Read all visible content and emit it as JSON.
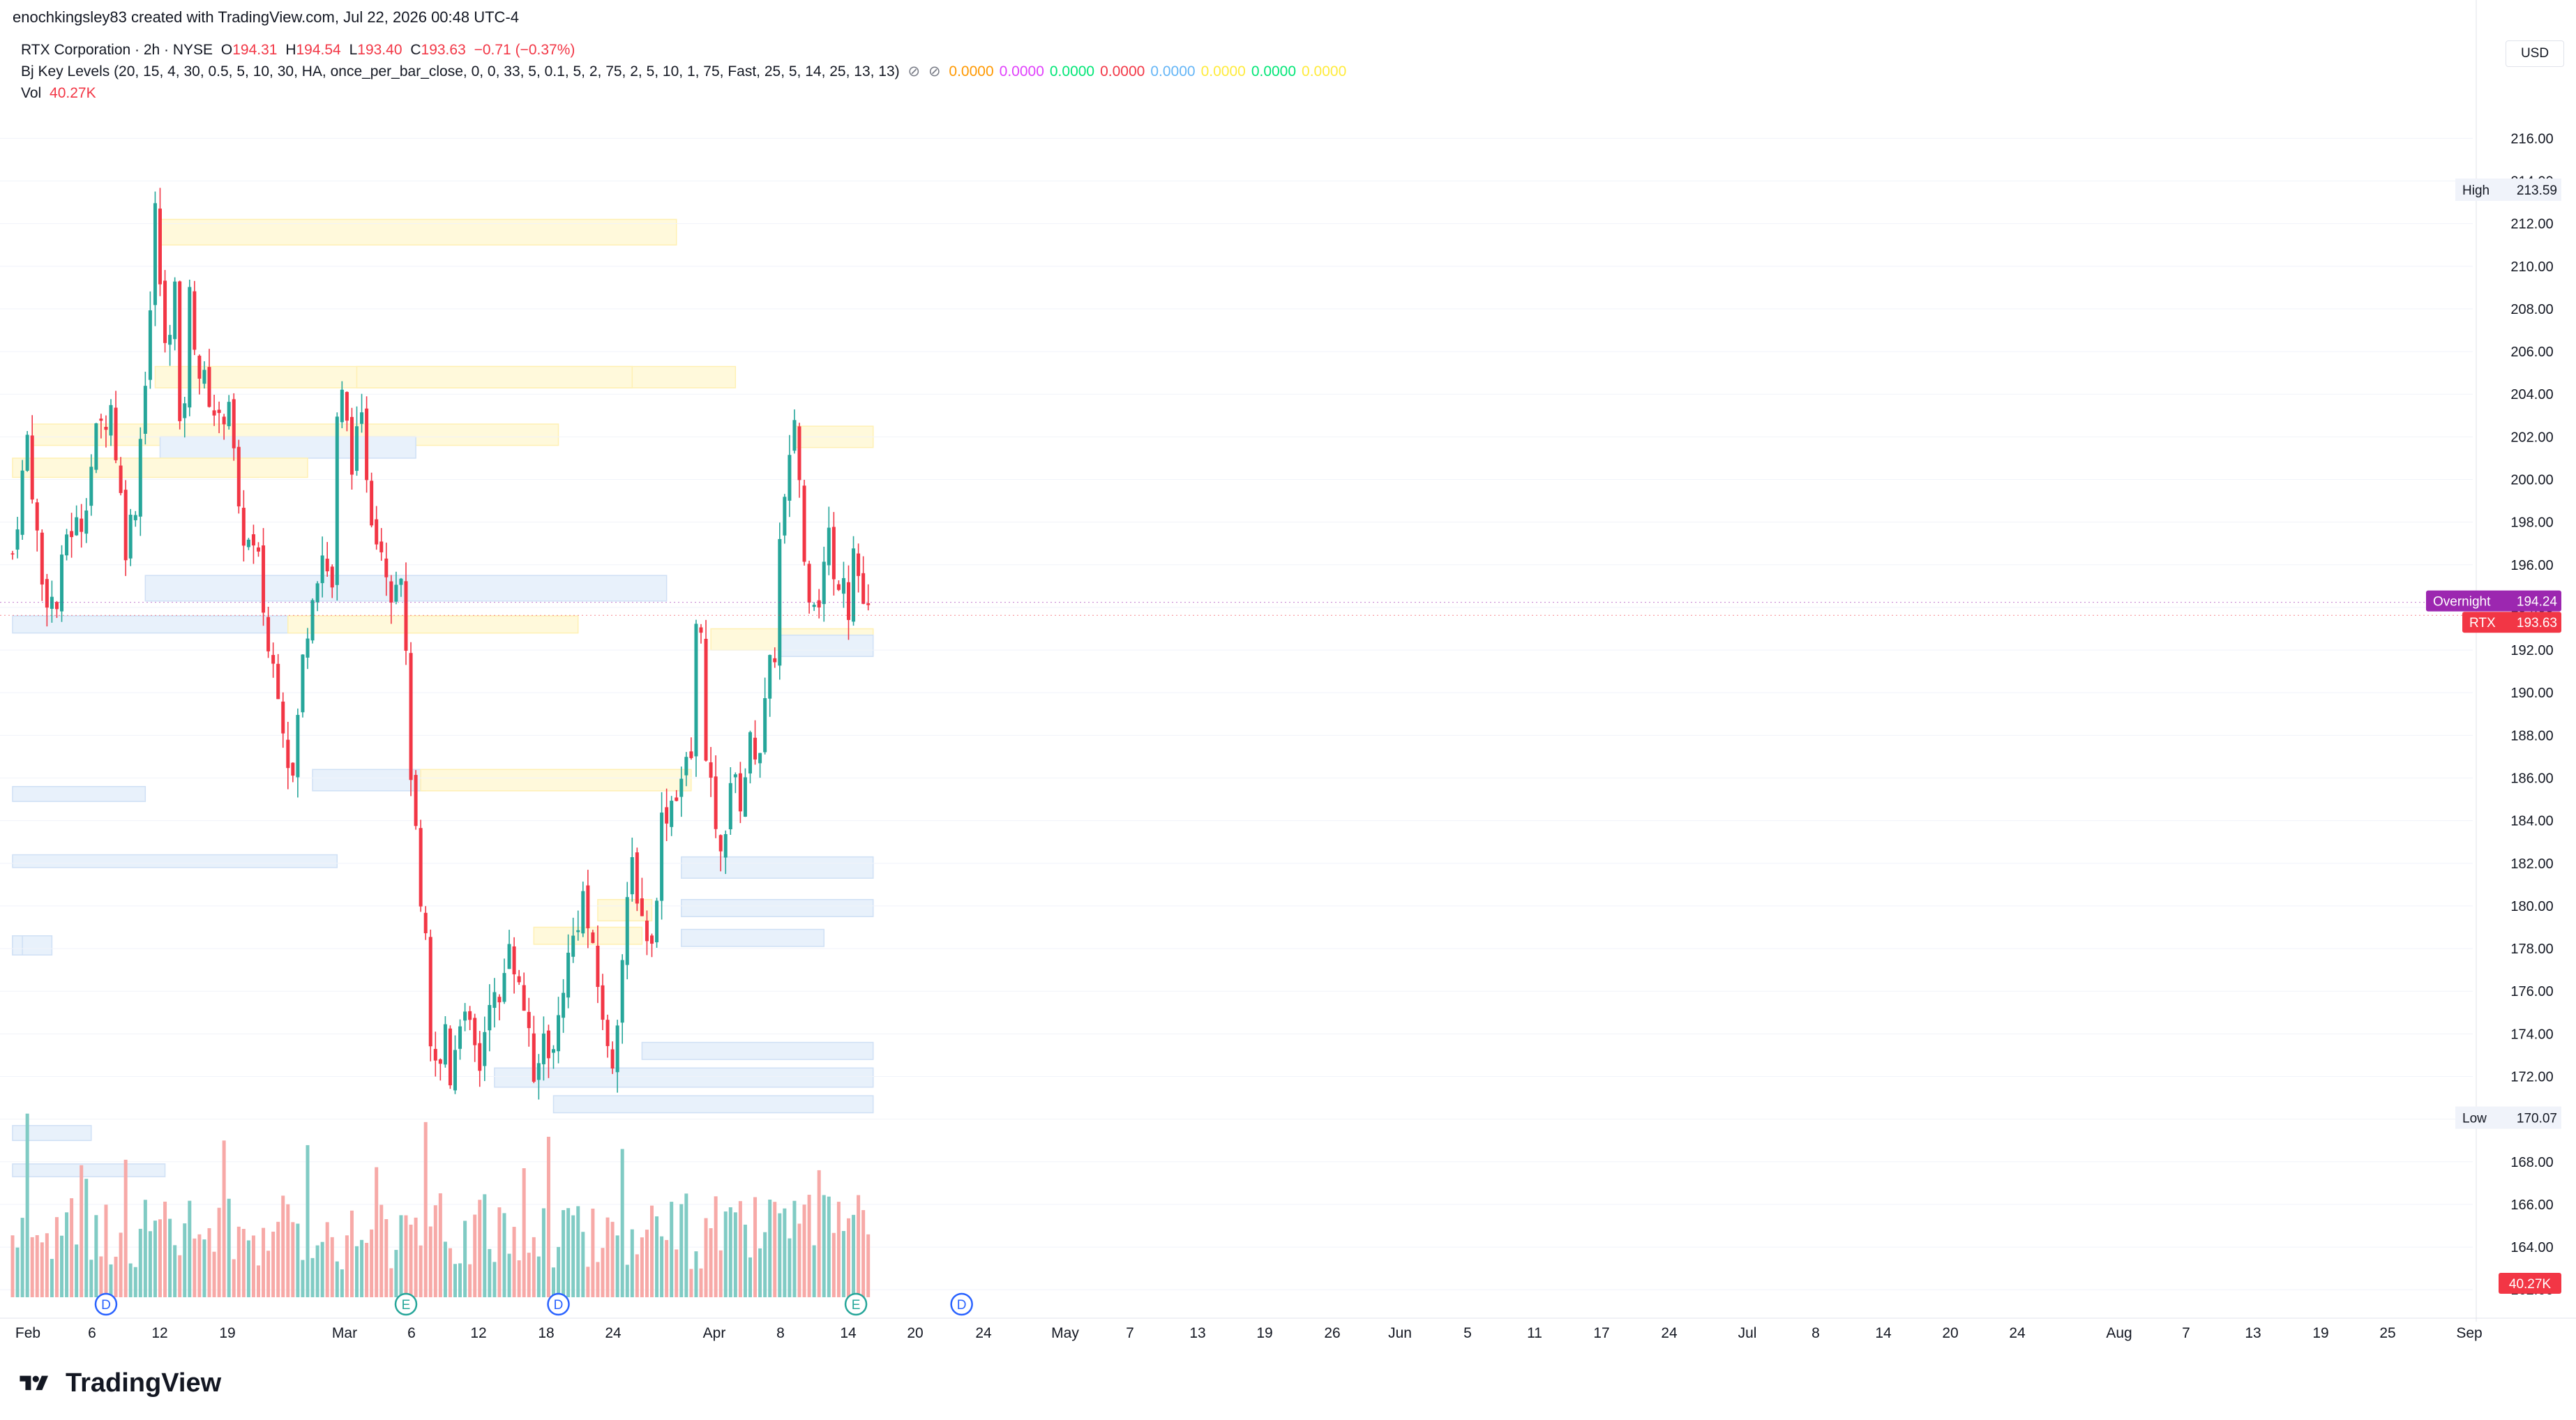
{
  "header": {
    "author_line": "enochkingsley83 created with TradingView.com, Jul 22, 2026 00:48 UTC-4"
  },
  "legend": {
    "symbol": "RTX Corporation · 2h · NYSE",
    "open_label": "O",
    "open": "194.31",
    "high_label": "H",
    "high": "194.54",
    "low_label": "L",
    "low": "193.40",
    "close_label": "C",
    "close": "193.63",
    "change": "−0.71 (−0.37%)",
    "indicator": "Bj Key Levels (20, 15, 4, 30, 0.5, 5, 10, 30, HA, once_per_bar_close, 0, 0, 33, 5, 0.1, 5, 2, 75, 2, 5, 10, 1, 75, Fast, 25, 5, 14, 25, 13, 13)",
    "indicator_values": [
      {
        "text": "0.0000",
        "color": "#ff9800"
      },
      {
        "text": "0.0000",
        "color": "#e040fb"
      },
      {
        "text": "0.0000",
        "color": "#00e676"
      },
      {
        "text": "0.0000",
        "color": "#f23645"
      },
      {
        "text": "0.0000",
        "color": "#64b5f6"
      },
      {
        "text": "0.0000",
        "color": "#ffeb3b"
      },
      {
        "text": "0.0000",
        "color": "#00e676"
      },
      {
        "text": "0.0000",
        "color": "#ffeb3b"
      }
    ],
    "vol_label": "Vol",
    "vol_value": "40.27K"
  },
  "currency_button": "USD",
  "branding": "TradingView",
  "colors": {
    "up": "#26a69a",
    "down": "#f23645",
    "vol_up": "#80cbc4",
    "vol_down": "#f7a9a7",
    "overnight": "#9c27b0",
    "price_tag": "#f23645",
    "resistance_zone": "#fff9db",
    "support_zone": "#e8f1fb"
  },
  "chart_data": {
    "type": "candlestick",
    "symbol": "RTX",
    "interval": "2h",
    "y_ticks": [
      "216.00",
      "214.00",
      "212.00",
      "210.00",
      "208.00",
      "206.00",
      "204.00",
      "202.00",
      "200.00",
      "198.00",
      "196.00",
      "194.00",
      "192.00",
      "190.00",
      "188.00",
      "186.00",
      "184.00",
      "182.00",
      "180.00",
      "178.00",
      "176.00",
      "174.00",
      "172.00",
      "170.00",
      "168.00",
      "166.00",
      "164.00",
      "162.00"
    ],
    "ylim": [
      161.5,
      217.5
    ],
    "x_ticks": [
      "Feb",
      "6",
      "12",
      "19",
      "Mar",
      "6",
      "12",
      "18",
      "24",
      "Apr",
      "8",
      "14",
      "20",
      "24",
      "May",
      "7",
      "13",
      "19",
      "26",
      "Jun",
      "5",
      "11",
      "17",
      "24",
      "Jul",
      "8",
      "14",
      "20",
      "24",
      "Aug",
      "7",
      "13",
      "19",
      "25",
      "Sep"
    ],
    "tags": {
      "high": {
        "label": "High",
        "value": "213.59"
      },
      "low": {
        "label": "Low",
        "value": "170.07"
      },
      "overnight": {
        "label": "Overnight",
        "value": "194.24"
      },
      "last": {
        "label": "RTX",
        "value": "193.63"
      },
      "volume": {
        "value": "40.27K"
      }
    },
    "events": [
      {
        "label": "D",
        "x_day": 19
      },
      {
        "label": "E",
        "x_day": 80
      },
      {
        "label": "D",
        "x_day": 111
      },
      {
        "label": "D",
        "x_day": 193
      },
      {
        "label": "E",
        "x_day": 171.5
      }
    ],
    "anchors": [
      [
        0,
        196.5
      ],
      [
        3,
        202
      ],
      [
        6,
        195
      ],
      [
        9,
        194
      ],
      [
        11,
        197.5
      ],
      [
        14,
        198
      ],
      [
        17,
        202
      ],
      [
        20,
        203.5
      ],
      [
        23,
        197
      ],
      [
        25,
        199
      ],
      [
        28,
        208
      ],
      [
        29,
        212.5
      ],
      [
        31,
        206
      ],
      [
        33,
        209
      ],
      [
        34,
        202
      ],
      [
        35,
        204
      ],
      [
        36,
        208.5
      ],
      [
        38,
        205
      ],
      [
        40,
        204
      ],
      [
        42,
        202.5
      ],
      [
        44,
        204
      ],
      [
        46,
        198
      ],
      [
        48,
        197
      ],
      [
        50,
        196
      ],
      [
        52,
        192
      ],
      [
        54,
        190.5
      ],
      [
        56,
        187
      ],
      [
        57,
        186
      ],
      [
        59,
        191.5
      ],
      [
        61,
        195
      ],
      [
        63,
        196.5
      ],
      [
        65,
        195
      ],
      [
        66,
        202.5
      ],
      [
        67,
        203.8
      ],
      [
        69,
        201
      ],
      [
        71,
        202.5
      ],
      [
        73,
        198.5
      ],
      [
        75,
        197
      ],
      [
        77,
        195
      ],
      [
        79,
        196
      ],
      [
        81,
        186.5
      ],
      [
        83,
        179.5
      ],
      [
        84,
        178
      ],
      [
        85,
        173
      ],
      [
        87,
        172.3
      ],
      [
        88,
        174.5
      ],
      [
        89,
        172
      ],
      [
        91,
        175
      ],
      [
        93,
        174
      ],
      [
        95,
        172.5
      ],
      [
        97,
        176
      ],
      [
        99,
        175
      ],
      [
        101,
        178.8
      ],
      [
        103,
        176
      ],
      [
        105,
        174.5
      ],
      [
        106,
        171
      ],
      [
        108,
        174
      ],
      [
        110,
        173
      ],
      [
        112,
        176.5
      ],
      [
        114,
        178.5
      ],
      [
        116,
        180.5
      ],
      [
        118,
        177.5
      ],
      [
        120,
        175
      ],
      [
        121,
        173
      ],
      [
        122,
        172.8
      ],
      [
        124,
        177.5
      ],
      [
        126,
        182
      ],
      [
        128,
        179.5
      ],
      [
        130,
        178
      ],
      [
        132,
        184
      ],
      [
        134,
        185
      ],
      [
        136,
        186
      ],
      [
        138,
        187
      ],
      [
        139,
        192.8
      ],
      [
        140,
        193.5
      ],
      [
        141,
        186.5
      ],
      [
        143,
        184
      ],
      [
        144,
        182
      ],
      [
        146,
        186
      ],
      [
        148,
        185
      ],
      [
        150,
        187.5
      ],
      [
        152,
        187.5
      ],
      [
        154,
        191
      ],
      [
        155,
        192
      ],
      [
        156,
        197
      ],
      [
        158,
        200.5
      ],
      [
        159,
        203
      ],
      [
        160,
        200
      ],
      [
        161,
        196
      ],
      [
        162,
        195
      ],
      [
        164,
        194.5
      ],
      [
        165,
        196
      ],
      [
        166,
        197.5
      ],
      [
        167,
        195
      ],
      [
        169,
        196
      ],
      [
        170,
        194
      ],
      [
        171,
        196.8
      ],
      [
        172,
        195.5
      ],
      [
        173,
        194.2
      ],
      [
        174,
        193.63
      ]
    ],
    "zones": [
      {
        "kind": "resistance",
        "x0": 30,
        "x1": 135,
        "top": 212.2,
        "bottom": 211.0
      },
      {
        "kind": "resistance",
        "x0": 29,
        "x1": 147,
        "top": 205.3,
        "bottom": 204.3
      },
      {
        "kind": "resistance",
        "x0": 70,
        "x1": 126,
        "top": 205.3,
        "bottom": 204.3
      },
      {
        "kind": "resistance",
        "x0": 4,
        "x1": 111,
        "top": 202.6,
        "bottom": 201.6
      },
      {
        "kind": "resistance",
        "x0": 159,
        "x1": 175,
        "top": 202.5,
        "bottom": 201.5
      },
      {
        "kind": "support",
        "x0": 30,
        "x1": 82,
        "top": 202.0,
        "bottom": 201.0
      },
      {
        "kind": "support",
        "x0": 17,
        "x1": 50,
        "top": 201.0,
        "bottom": 200.1
      },
      {
        "kind": "resistance",
        "x0": 0,
        "x1": 60,
        "top": 201.0,
        "bottom": 200.1
      },
      {
        "kind": "support",
        "x0": 27,
        "x1": 133,
        "top": 195.5,
        "bottom": 194.3
      },
      {
        "kind": "support",
        "x0": 0,
        "x1": 61,
        "top": 193.6,
        "bottom": 192.8
      },
      {
        "kind": "resistance",
        "x0": 56,
        "x1": 103,
        "top": 193.6,
        "bottom": 192.8
      },
      {
        "kind": "resistance",
        "x0": 80,
        "x1": 115,
        "top": 193.6,
        "bottom": 192.8
      },
      {
        "kind": "resistance",
        "x0": 142,
        "x1": 175,
        "top": 193.0,
        "bottom": 192.0
      },
      {
        "kind": "support",
        "x0": 156,
        "x1": 175,
        "top": 192.7,
        "bottom": 191.7
      },
      {
        "kind": "support",
        "x0": 61,
        "x1": 84,
        "top": 186.4,
        "bottom": 185.4
      },
      {
        "kind": "resistance",
        "x0": 83,
        "x1": 138,
        "top": 186.4,
        "bottom": 185.4
      },
      {
        "kind": "support",
        "x0": 0,
        "x1": 27,
        "top": 185.6,
        "bottom": 184.9
      },
      {
        "kind": "support",
        "x0": 0,
        "x1": 66,
        "top": 182.4,
        "bottom": 181.8
      },
      {
        "kind": "support",
        "x0": 136,
        "x1": 175,
        "top": 182.3,
        "bottom": 181.3
      },
      {
        "kind": "support",
        "x0": 136,
        "x1": 175,
        "top": 180.3,
        "bottom": 179.5
      },
      {
        "kind": "resistance",
        "x0": 119,
        "x1": 130,
        "top": 180.3,
        "bottom": 179.3
      },
      {
        "kind": "resistance",
        "x0": 106,
        "x1": 128,
        "top": 179.0,
        "bottom": 178.2
      },
      {
        "kind": "support",
        "x0": 136,
        "x1": 165,
        "top": 178.9,
        "bottom": 178.1
      },
      {
        "kind": "support",
        "x0": 0,
        "x1": 8,
        "top": 178.6,
        "bottom": 177.7
      },
      {
        "kind": "support",
        "x0": 0,
        "x1": 2,
        "top": 178.6,
        "bottom": 177.7
      },
      {
        "kind": "support",
        "x0": 128,
        "x1": 175,
        "top": 173.6,
        "bottom": 172.8
      },
      {
        "kind": "support",
        "x0": 98,
        "x1": 175,
        "top": 172.4,
        "bottom": 171.5
      },
      {
        "kind": "support",
        "x0": 110,
        "x1": 175,
        "top": 171.1,
        "bottom": 170.3
      },
      {
        "kind": "support",
        "x0": 0,
        "x1": 16,
        "top": 169.7,
        "bottom": 169.0
      },
      {
        "kind": "support",
        "x0": 0,
        "x1": 31,
        "top": 167.9,
        "bottom": 167.3
      }
    ]
  }
}
